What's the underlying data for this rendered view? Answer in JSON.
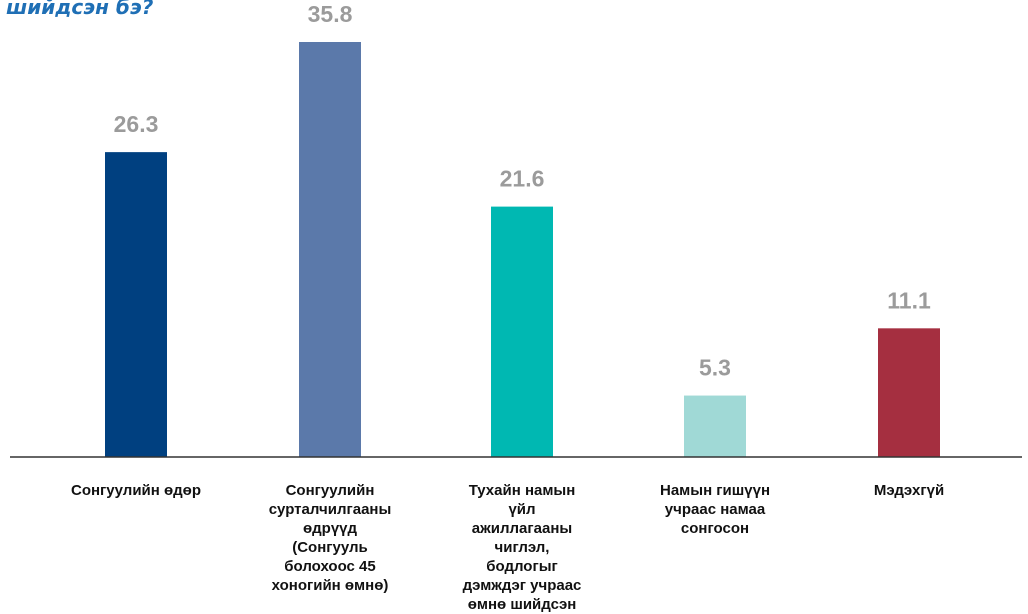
{
  "chart_data": {
    "type": "bar",
    "title": "шийдсэн бэ?",
    "categories": [
      "Сонгуулийн өдөр",
      "Сонгуулийн сурталчилгааны өдрүүд (Сонгууль болохоос 45 хоногийн өмнө)",
      "Тухайн намын үйл ажиллагааны чиглэл, бодлогыг дэмждэг учраас өмнө шийдсэн",
      "Намын гишүүн учраас намаа сонгосон",
      "Мэдэхгүй"
    ],
    "values": [
      26.3,
      35.8,
      21.6,
      5.3,
      11.1
    ],
    "value_labels": [
      "26.3",
      "35.8",
      "21.6",
      "5.3",
      "11.1"
    ],
    "colors": [
      "#004080",
      "#5b79aa",
      "#00b8b2",
      "#a0d9d6",
      "#a52f40"
    ],
    "value_label_color": "#9b9b9b",
    "title_color": "#1f6fb5",
    "xlabel": "",
    "ylabel": "",
    "ylim": [
      0,
      35.8
    ],
    "grid": false,
    "legend": "none"
  }
}
